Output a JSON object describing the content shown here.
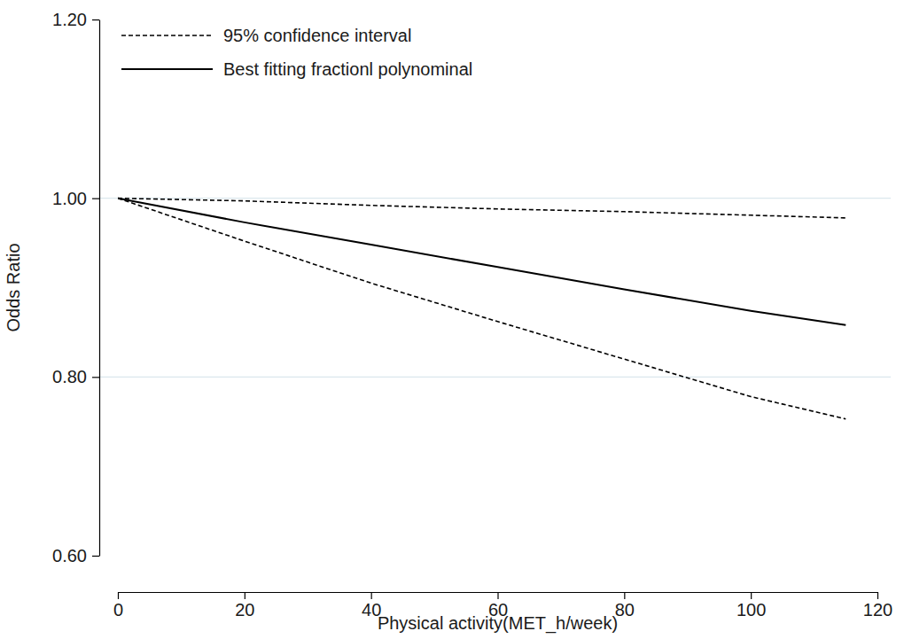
{
  "chart_data": {
    "type": "line",
    "x_label": "Physical activity(MET_h/week)",
    "y_label": "Odds Ratio",
    "x": [
      0,
      20,
      40,
      60,
      80,
      100,
      115
    ],
    "series": [
      {
        "name": "95% confidence interval",
        "color": "#000000",
        "line_style": "dashed",
        "values": [
          1.0,
          0.997,
          0.992,
          0.988,
          0.985,
          0.981,
          0.978
        ]
      },
      {
        "name": "Best fitting fractionl polynominal",
        "color": "#000000",
        "line_style": "solid",
        "values": [
          1.0,
          0.973,
          0.948,
          0.923,
          0.898,
          0.874,
          0.858
        ]
      },
      {
        "name": "95% confidence interval",
        "color": "#000000",
        "line_style": "dashed",
        "values": [
          1.0,
          0.952,
          0.905,
          0.862,
          0.82,
          0.778,
          0.753
        ]
      }
    ],
    "xlim": [
      0,
      120
    ],
    "ylim": [
      0.6,
      1.2
    ],
    "xticks": [
      0,
      20,
      40,
      60,
      80,
      100,
      120
    ],
    "yticks": [
      {
        "value": 0.6,
        "label": "0.60"
      },
      {
        "value": 0.8,
        "label": "0.80"
      },
      {
        "value": 1.0,
        "label": "1.00"
      },
      {
        "value": 1.2,
        "label": "1.20"
      }
    ],
    "grid": true,
    "legend": "top-left"
  }
}
